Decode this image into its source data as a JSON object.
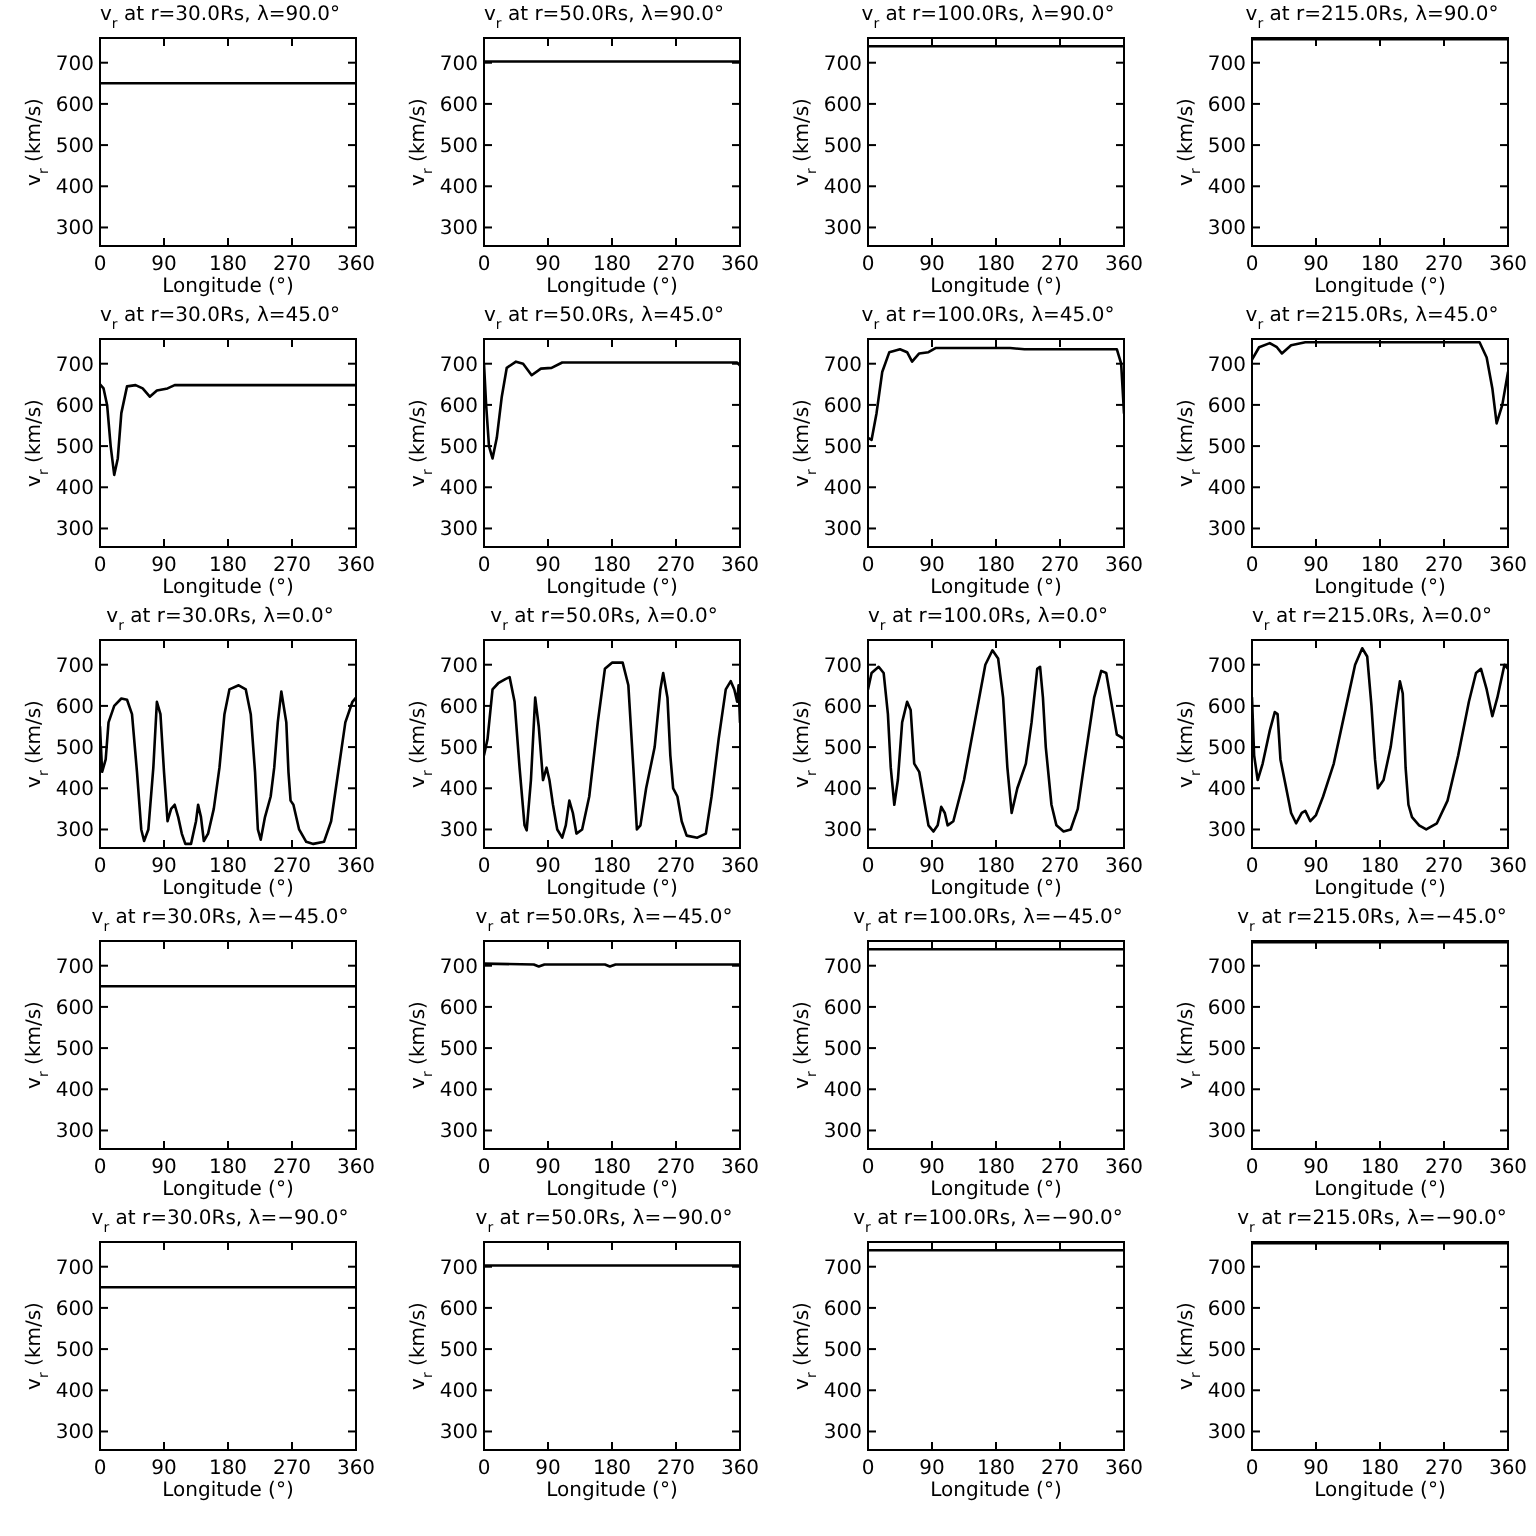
{
  "chart_data": [
    {
      "type": "line",
      "title": "v$_{r}$ at r=30.0Rs, λ=90.0°",
      "xlabel": "Longitude (°)",
      "ylabel": "v$_{r}$ (km/s)",
      "xlim": [
        0,
        360
      ],
      "ylim": [
        255,
        760
      ],
      "xticks": [
        0,
        90,
        180,
        270,
        360
      ],
      "yticks": [
        300,
        400,
        500,
        600,
        700
      ],
      "color": "#000000",
      "x": [
        0,
        360
      ],
      "values": [
        650,
        650
      ]
    },
    {
      "type": "line",
      "title": "v$_{r}$ at r=50.0Rs, λ=90.0°",
      "xlabel": "Longitude (°)",
      "ylabel": "v$_{r}$ (km/s)",
      "xlim": [
        0,
        360
      ],
      "ylim": [
        255,
        760
      ],
      "xticks": [
        0,
        90,
        180,
        270,
        360
      ],
      "yticks": [
        300,
        400,
        500,
        600,
        700
      ],
      "color": "#000000",
      "x": [
        0,
        360
      ],
      "values": [
        703,
        703
      ]
    },
    {
      "type": "line",
      "title": "v$_{r}$ at r=100.0Rs, λ=90.0°",
      "xlabel": "Longitude (°)",
      "ylabel": "v$_{r}$ (km/s)",
      "xlim": [
        0,
        360
      ],
      "ylim": [
        255,
        760
      ],
      "xticks": [
        0,
        90,
        180,
        270,
        360
      ],
      "yticks": [
        300,
        400,
        500,
        600,
        700
      ],
      "color": "#000000",
      "x": [
        0,
        360
      ],
      "values": [
        740,
        740
      ]
    },
    {
      "type": "line",
      "title": "v$_{r}$ at r=215.0Rs, λ=90.0°",
      "xlabel": "Longitude (°)",
      "ylabel": "v$_{r}$ (km/s)",
      "xlim": [
        0,
        360
      ],
      "ylim": [
        255,
        760
      ],
      "xticks": [
        0,
        90,
        180,
        270,
        360
      ],
      "yticks": [
        300,
        400,
        500,
        600,
        700
      ],
      "color": "#000000",
      "x": [
        0,
        360
      ],
      "values": [
        757,
        757
      ]
    },
    {
      "type": "line",
      "title": "v$_{r}$ at r=30.0Rs, λ=45.0°",
      "xlabel": "Longitude (°)",
      "ylabel": "v$_{r}$ (km/s)",
      "xlim": [
        0,
        360
      ],
      "ylim": [
        255,
        760
      ],
      "xticks": [
        0,
        90,
        180,
        270,
        360
      ],
      "yticks": [
        300,
        400,
        500,
        600,
        700
      ],
      "color": "#000000",
      "x": [
        0,
        5,
        10,
        15,
        20,
        25,
        30,
        38,
        50,
        60,
        70,
        80,
        95,
        105,
        360
      ],
      "values": [
        650,
        640,
        600,
        500,
        430,
        470,
        580,
        645,
        648,
        640,
        620,
        635,
        640,
        648,
        648
      ]
    },
    {
      "type": "line",
      "title": "v$_{r}$ at r=50.0Rs, λ=45.0°",
      "xlabel": "Longitude (°)",
      "ylabel": "v$_{r}$ (km/s)",
      "xlim": [
        0,
        360
      ],
      "ylim": [
        255,
        760
      ],
      "xticks": [
        0,
        90,
        180,
        270,
        360
      ],
      "yticks": [
        300,
        400,
        500,
        600,
        700
      ],
      "color": "#000000",
      "x": [
        0,
        3,
        7,
        12,
        18,
        25,
        32,
        45,
        55,
        67,
        80,
        95,
        110,
        356,
        360
      ],
      "values": [
        700,
        600,
        500,
        470,
        520,
        620,
        690,
        705,
        700,
        672,
        688,
        690,
        703,
        703,
        695
      ]
    },
    {
      "type": "line",
      "title": "v$_{r}$ at r=100.0Rs, λ=45.0°",
      "xlabel": "Longitude (°)",
      "ylabel": "v$_{r}$ (km/s)",
      "xlim": [
        0,
        360
      ],
      "ylim": [
        255,
        760
      ],
      "xticks": [
        0,
        90,
        180,
        270,
        360
      ],
      "yticks": [
        300,
        400,
        500,
        600,
        700
      ],
      "color": "#000000",
      "x": [
        0,
        5,
        12,
        20,
        30,
        45,
        55,
        62,
        72,
        85,
        95,
        200,
        220,
        350,
        356,
        360
      ],
      "values": [
        520,
        515,
        580,
        680,
        728,
        735,
        728,
        705,
        725,
        728,
        738,
        738,
        735,
        735,
        700,
        580
      ]
    },
    {
      "type": "line",
      "title": "v$_{r}$ at r=215.0Rs, λ=45.0°",
      "xlabel": "Longitude (°)",
      "ylabel": "v$_{r}$ (km/s)",
      "xlim": [
        0,
        360
      ],
      "ylim": [
        255,
        760
      ],
      "xticks": [
        0,
        90,
        180,
        270,
        360
      ],
      "yticks": [
        300,
        400,
        500,
        600,
        700
      ],
      "color": "#000000",
      "x": [
        0,
        10,
        25,
        35,
        42,
        55,
        75,
        320,
        330,
        338,
        344,
        352,
        360
      ],
      "values": [
        710,
        740,
        750,
        740,
        725,
        745,
        752,
        752,
        715,
        640,
        555,
        600,
        680
      ]
    },
    {
      "type": "line",
      "title": "v$_{r}$ at r=30.0Rs, λ=0.0°",
      "xlabel": "Longitude (°)",
      "ylabel": "v$_{r}$ (km/s)",
      "xlim": [
        0,
        360
      ],
      "ylim": [
        255,
        760
      ],
      "xticks": [
        0,
        90,
        180,
        270,
        360
      ],
      "yticks": [
        300,
        400,
        500,
        600,
        700
      ],
      "color": "#000000",
      "x": [
        0,
        3,
        8,
        12,
        20,
        30,
        38,
        45,
        52,
        58,
        62,
        68,
        75,
        80,
        85,
        90,
        95,
        100,
        105,
        110,
        115,
        120,
        128,
        135,
        138,
        142,
        146,
        152,
        160,
        168,
        175,
        182,
        195,
        205,
        212,
        218,
        222,
        226,
        232,
        240,
        245,
        250,
        255,
        262,
        265,
        268,
        272,
        280,
        290,
        300,
        315,
        325,
        335,
        345,
        355,
        360
      ],
      "values": [
        550,
        440,
        470,
        560,
        600,
        618,
        615,
        580,
        440,
        300,
        272,
        300,
        450,
        610,
        580,
        440,
        320,
        350,
        360,
        330,
        290,
        265,
        265,
        320,
        360,
        330,
        272,
        290,
        350,
        450,
        580,
        640,
        650,
        640,
        580,
        440,
        300,
        275,
        330,
        380,
        450,
        560,
        635,
        560,
        440,
        370,
        360,
        300,
        270,
        265,
        270,
        320,
        440,
        560,
        610,
        620
      ]
    },
    {
      "type": "line",
      "title": "v$_{r}$ at r=50.0Rs, λ=0.0°",
      "xlabel": "Longitude (°)",
      "ylabel": "v$_{r}$ (km/s)",
      "xlim": [
        0,
        360
      ],
      "ylim": [
        255,
        760
      ],
      "xticks": [
        0,
        90,
        180,
        270,
        360
      ],
      "yticks": [
        300,
        400,
        500,
        600,
        700
      ],
      "color": "#000000",
      "x": [
        0,
        5,
        12,
        20,
        30,
        36,
        43,
        50,
        57,
        60,
        66,
        72,
        77,
        83,
        88,
        92,
        97,
        103,
        110,
        115,
        120,
        125,
        130,
        138,
        148,
        160,
        170,
        180,
        195,
        203,
        210,
        215,
        220,
        228,
        240,
        248,
        252,
        258,
        262,
        266,
        272,
        278,
        285,
        300,
        312,
        320,
        330,
        340,
        347,
        352,
        356,
        358,
        360
      ],
      "values": [
        480,
        520,
        640,
        655,
        665,
        670,
        610,
        450,
        310,
        298,
        420,
        620,
        550,
        420,
        450,
        420,
        360,
        300,
        280,
        310,
        370,
        340,
        290,
        300,
        380,
        560,
        690,
        705,
        705,
        650,
        450,
        300,
        310,
        400,
        500,
        640,
        680,
        620,
        480,
        400,
        380,
        320,
        285,
        280,
        290,
        380,
        520,
        640,
        660,
        640,
        610,
        650,
        560
      ]
    },
    {
      "type": "line",
      "title": "v$_{r}$ at r=100.0Rs, λ=0.0°",
      "xlabel": "Longitude (°)",
      "ylabel": "v$_{r}$ (km/s)",
      "xlim": [
        0,
        360
      ],
      "ylim": [
        255,
        760
      ],
      "xticks": [
        0,
        90,
        180,
        270,
        360
      ],
      "yticks": [
        300,
        400,
        500,
        600,
        700
      ],
      "color": "#000000",
      "x": [
        0,
        5,
        15,
        22,
        28,
        32,
        37,
        42,
        48,
        55,
        60,
        65,
        72,
        78,
        85,
        92,
        98,
        103,
        108,
        112,
        120,
        135,
        150,
        165,
        175,
        183,
        190,
        196,
        202,
        210,
        222,
        230,
        238,
        242,
        246,
        250,
        258,
        265,
        275,
        285,
        295,
        305,
        318,
        328,
        335,
        343,
        350,
        360
      ],
      "values": [
        640,
        680,
        695,
        680,
        580,
        450,
        360,
        420,
        560,
        610,
        590,
        460,
        440,
        380,
        310,
        295,
        310,
        355,
        340,
        310,
        320,
        420,
        560,
        700,
        735,
        715,
        620,
        450,
        340,
        400,
        460,
        560,
        690,
        695,
        620,
        500,
        360,
        310,
        295,
        300,
        350,
        470,
        620,
        685,
        680,
        600,
        530,
        520
      ]
    },
    {
      "type": "line",
      "title": "v$_{r}$ at r=215.0Rs, λ=0.0°",
      "xlabel": "Longitude (°)",
      "ylabel": "v$_{r}$ (km/s)",
      "xlim": [
        0,
        360
      ],
      "ylim": [
        255,
        760
      ],
      "xticks": [
        0,
        90,
        180,
        270,
        360
      ],
      "yticks": [
        300,
        400,
        500,
        600,
        700
      ],
      "color": "#000000",
      "x": [
        0,
        3,
        8,
        15,
        25,
        32,
        36,
        40,
        47,
        55,
        62,
        70,
        75,
        82,
        90,
        100,
        115,
        130,
        145,
        155,
        162,
        168,
        173,
        177,
        185,
        195,
        203,
        208,
        212,
        216,
        220,
        225,
        235,
        245,
        260,
        275,
        290,
        305,
        315,
        322,
        330,
        338,
        345,
        355,
        360
      ],
      "values": [
        620,
        480,
        420,
        460,
        540,
        585,
        580,
        470,
        410,
        340,
        315,
        340,
        345,
        320,
        335,
        380,
        460,
        580,
        700,
        740,
        720,
        600,
        470,
        400,
        420,
        500,
        600,
        660,
        630,
        450,
        360,
        330,
        310,
        300,
        315,
        370,
        480,
        610,
        680,
        690,
        640,
        575,
        620,
        700,
        690
      ]
    },
    {
      "type": "line",
      "title": "v$_{r}$ at r=30.0Rs, λ=−45.0°",
      "xlabel": "Longitude (°)",
      "ylabel": "v$_{r}$ (km/s)",
      "xlim": [
        0,
        360
      ],
      "ylim": [
        255,
        760
      ],
      "xticks": [
        0,
        90,
        180,
        270,
        360
      ],
      "yticks": [
        300,
        400,
        500,
        600,
        700
      ],
      "color": "#000000",
      "x": [
        0,
        360
      ],
      "values": [
        650,
        650
      ]
    },
    {
      "type": "line",
      "title": "v$_{r}$ at r=50.0Rs, λ=−45.0°",
      "xlabel": "Longitude (°)",
      "ylabel": "v$_{r}$ (km/s)",
      "xlim": [
        0,
        360
      ],
      "ylim": [
        255,
        760
      ],
      "xticks": [
        0,
        90,
        180,
        270,
        360
      ],
      "yticks": [
        300,
        400,
        500,
        600,
        700
      ],
      "color": "#000000",
      "x": [
        0,
        70,
        77,
        85,
        170,
        177,
        185,
        360
      ],
      "values": [
        705,
        703,
        698,
        703,
        703,
        698,
        703,
        703
      ]
    },
    {
      "type": "line",
      "title": "v$_{r}$ at r=100.0Rs, λ=−45.0°",
      "xlabel": "Longitude (°)",
      "ylabel": "v$_{r}$ (km/s)",
      "xlim": [
        0,
        360
      ],
      "ylim": [
        255,
        760
      ],
      "xticks": [
        0,
        90,
        180,
        270,
        360
      ],
      "yticks": [
        300,
        400,
        500,
        600,
        700
      ],
      "color": "#000000",
      "x": [
        0,
        360
      ],
      "values": [
        740,
        740
      ]
    },
    {
      "type": "line",
      "title": "v$_{r}$ at r=215.0Rs, λ=−45.0°",
      "xlabel": "Longitude (°)",
      "ylabel": "v$_{r}$ (km/s)",
      "xlim": [
        0,
        360
      ],
      "ylim": [
        255,
        760
      ],
      "xticks": [
        0,
        90,
        180,
        270,
        360
      ],
      "yticks": [
        300,
        400,
        500,
        600,
        700
      ],
      "color": "#000000",
      "x": [
        0,
        360
      ],
      "values": [
        757,
        757
      ]
    },
    {
      "type": "line",
      "title": "v$_{r}$ at r=30.0Rs, λ=−90.0°",
      "xlabel": "Longitude (°)",
      "ylabel": "v$_{r}$ (km/s)",
      "xlim": [
        0,
        360
      ],
      "ylim": [
        255,
        760
      ],
      "xticks": [
        0,
        90,
        180,
        270,
        360
      ],
      "yticks": [
        300,
        400,
        500,
        600,
        700
      ],
      "color": "#000000",
      "x": [
        0,
        360
      ],
      "values": [
        650,
        650
      ]
    },
    {
      "type": "line",
      "title": "v$_{r}$ at r=50.0Rs, λ=−90.0°",
      "xlabel": "Longitude (°)",
      "ylabel": "v$_{r}$ (km/s)",
      "xlim": [
        0,
        360
      ],
      "ylim": [
        255,
        760
      ],
      "xticks": [
        0,
        90,
        180,
        270,
        360
      ],
      "yticks": [
        300,
        400,
        500,
        600,
        700
      ],
      "color": "#000000",
      "x": [
        0,
        360
      ],
      "values": [
        703,
        703
      ]
    },
    {
      "type": "line",
      "title": "v$_{r}$ at r=100.0Rs, λ=−90.0°",
      "xlabel": "Longitude (°)",
      "ylabel": "v$_{r}$ (km/s)",
      "xlim": [
        0,
        360
      ],
      "ylim": [
        255,
        760
      ],
      "xticks": [
        0,
        90,
        180,
        270,
        360
      ],
      "yticks": [
        300,
        400,
        500,
        600,
        700
      ],
      "color": "#000000",
      "x": [
        0,
        360
      ],
      "values": [
        740,
        740
      ]
    },
    {
      "type": "line",
      "title": "v$_{r}$ at r=215.0Rs, λ=−90.0°",
      "xlabel": "Longitude (°)",
      "ylabel": "v$_{r}$ (km/s)",
      "xlim": [
        0,
        360
      ],
      "ylim": [
        255,
        760
      ],
      "xticks": [
        0,
        90,
        180,
        270,
        360
      ],
      "yticks": [
        300,
        400,
        500,
        600,
        700
      ],
      "color": "#000000",
      "x": [
        0,
        360
      ],
      "values": [
        757,
        757
      ]
    }
  ]
}
